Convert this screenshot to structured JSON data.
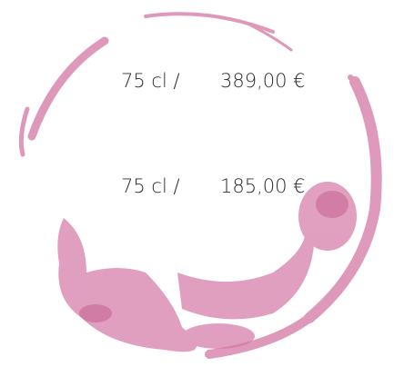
{
  "prices": [
    {
      "volume": "75 cl /",
      "price": "389,00 €"
    },
    {
      "volume": "75 cl /",
      "price": "185,00 €"
    }
  ]
}
